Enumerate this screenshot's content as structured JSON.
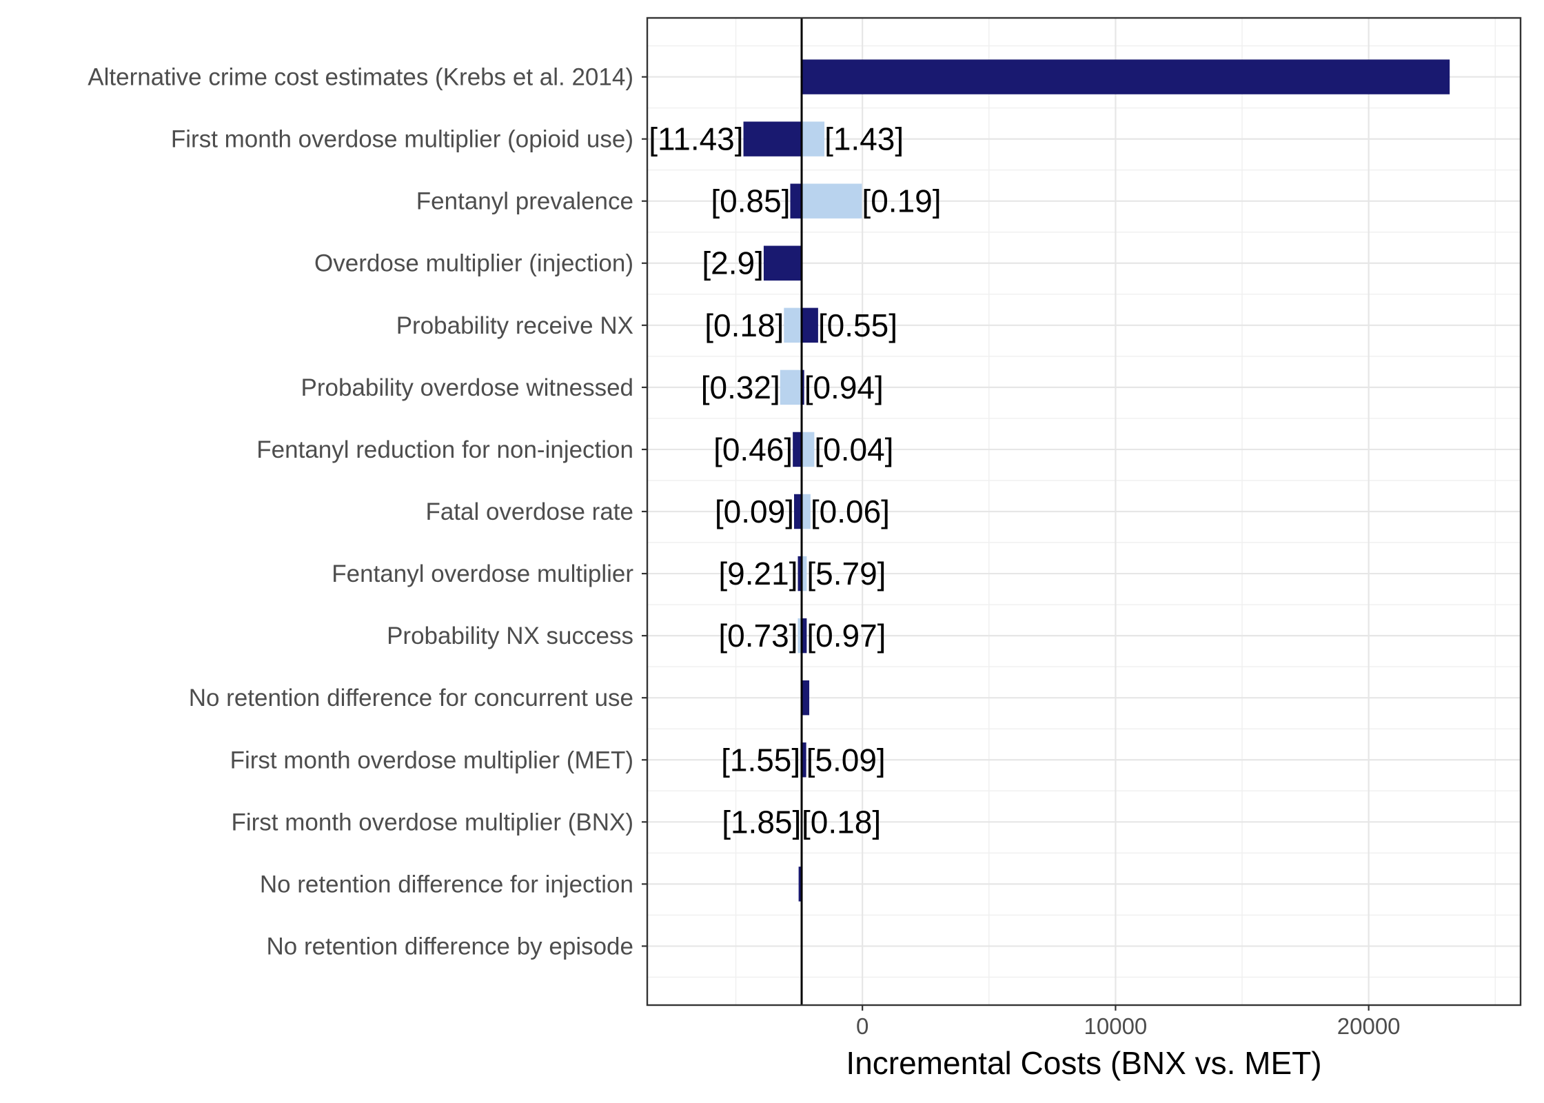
{
  "chart_data": {
    "type": "bar",
    "orientation": "horizontal",
    "subtype": "tornado",
    "xlabel": "Incremental Costs (BNX vs. MET)",
    "ylabel": "",
    "xlim": [
      -8500,
      26000
    ],
    "xticks": [
      0,
      10000,
      20000
    ],
    "baseline": -2400,
    "grid": true,
    "colors": {
      "dark": "#191970",
      "light": "#b9d3ee"
    },
    "categories": [
      "Alternative crime cost estimates (Krebs et al. 2014)",
      "First month overdose multiplier (opioid use)",
      "Fentanyl prevalence",
      "Overdose multiplier (injection)",
      "Probability receive NX",
      "Probability overdose witnessed",
      "Fentanyl reduction for non-injection",
      "Fatal overdose rate",
      "Fentanyl overdose multiplier",
      "Probability NX success",
      "No retention difference for concurrent use",
      "First month overdose multiplier (MET)",
      "First month overdose multiplier (BNX)",
      "No retention difference for injection",
      "No retention difference by episode"
    ],
    "bars": [
      {
        "segments": [
          {
            "from": -2400,
            "to": 23200,
            "color": "dark"
          }
        ],
        "left_label": "",
        "right_label": ""
      },
      {
        "segments": [
          {
            "from": -4700,
            "to": -2400,
            "color": "dark"
          },
          {
            "from": -2400,
            "to": -1500,
            "color": "light"
          }
        ],
        "left_label": "[11.43]",
        "right_label": "[1.43]"
      },
      {
        "segments": [
          {
            "from": -2850,
            "to": -2400,
            "color": "dark"
          },
          {
            "from": -2400,
            "to": -20,
            "color": "light"
          }
        ],
        "left_label": "[0.85]",
        "right_label": "[0.19]"
      },
      {
        "segments": [
          {
            "from": -3900,
            "to": -2400,
            "color": "dark"
          }
        ],
        "left_label": "[2.9]",
        "right_label": ""
      },
      {
        "segments": [
          {
            "from": -3100,
            "to": -2400,
            "color": "light"
          },
          {
            "from": -2400,
            "to": -1750,
            "color": "dark"
          }
        ],
        "left_label": "[0.18]",
        "right_label": "[0.55]"
      },
      {
        "segments": [
          {
            "from": -3250,
            "to": -2400,
            "color": "light"
          },
          {
            "from": -2400,
            "to": -2300,
            "color": "dark"
          }
        ],
        "left_label": "[0.32]",
        "right_label": "[0.94]"
      },
      {
        "segments": [
          {
            "from": -2750,
            "to": -2400,
            "color": "dark"
          },
          {
            "from": -2400,
            "to": -1900,
            "color": "light"
          }
        ],
        "left_label": "[0.46]",
        "right_label": "[0.04]"
      },
      {
        "segments": [
          {
            "from": -2700,
            "to": -2400,
            "color": "dark"
          },
          {
            "from": -2400,
            "to": -2050,
            "color": "light"
          }
        ],
        "left_label": "[0.09]",
        "right_label": "[0.06]"
      },
      {
        "segments": [
          {
            "from": -2550,
            "to": -2400,
            "color": "dark"
          },
          {
            "from": -2400,
            "to": -2200,
            "color": "light"
          }
        ],
        "left_label": "[9.21]",
        "right_label": "[5.79]"
      },
      {
        "segments": [
          {
            "from": -2550,
            "to": -2400,
            "color": "light"
          },
          {
            "from": -2400,
            "to": -2200,
            "color": "dark"
          }
        ],
        "left_label": "[0.73]",
        "right_label": "[0.97]"
      },
      {
        "segments": [
          {
            "from": -2400,
            "to": -2100,
            "color": "dark"
          }
        ],
        "left_label": "",
        "right_label": ""
      },
      {
        "segments": [
          {
            "from": -2450,
            "to": -2400,
            "color": "light"
          },
          {
            "from": -2400,
            "to": -2220,
            "color": "dark"
          }
        ],
        "left_label": "[1.55]",
        "right_label": "[5.09]"
      },
      {
        "segments": [
          {
            "from": -2420,
            "to": -2400,
            "color": "dark"
          }
        ],
        "left_label": "[1.85]",
        "right_label": "[0.18]"
      },
      {
        "segments": [
          {
            "from": -2520,
            "to": -2400,
            "color": "dark"
          }
        ],
        "left_label": "",
        "right_label": ""
      },
      {
        "segments": [],
        "left_label": "",
        "right_label": ""
      }
    ]
  }
}
